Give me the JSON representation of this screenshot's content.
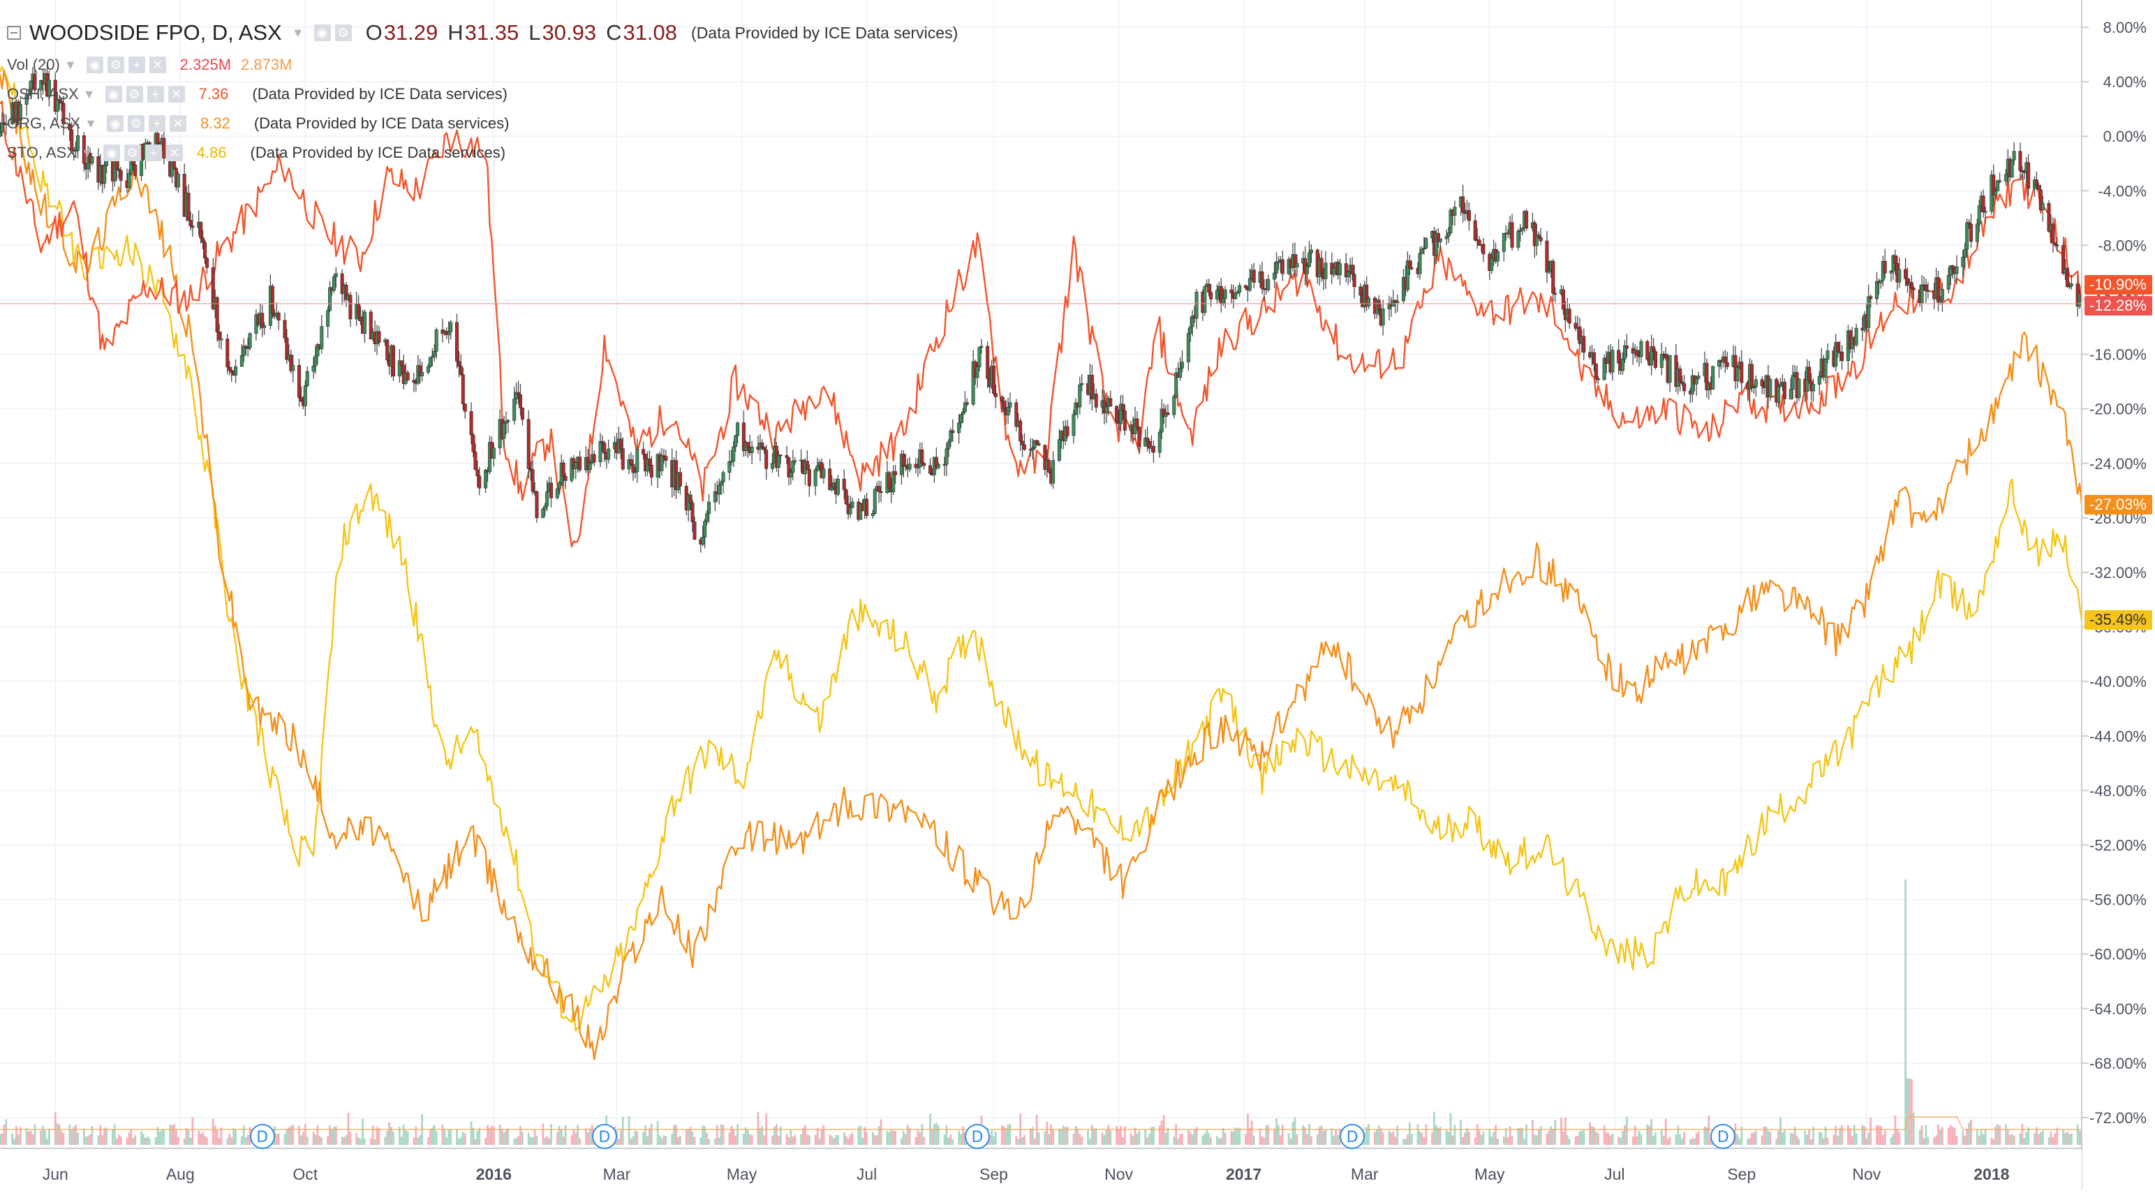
{
  "legend": {
    "main": {
      "symbol": "WOODSIDE FPO, D, ASX",
      "open_label": "O",
      "open": "31.29",
      "high_label": "H",
      "high": "31.35",
      "low_label": "L",
      "low": "30.93",
      "close_label": "C",
      "close": "31.08",
      "provider": "(Data Provided by ICE Data services)"
    },
    "vol": {
      "label": "Vol (20)",
      "value1": "2.325M",
      "value2": "2.873M",
      "color1": "#e8494f",
      "color2": "#f49b4c"
    },
    "comparisons": [
      {
        "label": "OSH, ASX",
        "value": "7.36",
        "color": "#f2552c",
        "provider": "(Data Provided by ICE Data services)"
      },
      {
        "label": "ORG, ASX",
        "value": "8.32",
        "color": "#f48f1b",
        "provider": "(Data Provided by ICE Data services)"
      },
      {
        "label": "STO, ASX",
        "value": "4.86",
        "color": "#f5c518",
        "provider": "(Data Provided by ICE Data services)"
      }
    ]
  },
  "colors": {
    "up_candle": "#3e8d5c",
    "down_candle": "#b32a2a",
    "wick": "#4a4a4a",
    "osh": "#f2552c",
    "org": "#f48f1b",
    "sto": "#f5c518",
    "vol_up": "#a8d8c4",
    "vol_down": "#f6b0b8",
    "vol_ma": "#f7a55a",
    "grid": "#f0f3fa",
    "axis_text": "#4c525e",
    "crosshair": "#f28c8c",
    "badge": "#2f8de4"
  },
  "events": [
    "D",
    "D",
    "D",
    "D",
    "D"
  ],
  "chart_data": {
    "type": "line",
    "y_unit": "%",
    "ylim": [
      -74,
      10
    ],
    "y_ticks": [
      "8.00%",
      "4.00%",
      "0.00%",
      "-4.00%",
      "-8.00%",
      "-12.00%",
      "-16.00%",
      "-20.00%",
      "-24.00%",
      "-28.00%",
      "-32.00%",
      "-36.00%",
      "-40.00%",
      "-44.00%",
      "-48.00%",
      "-52.00%",
      "-56.00%",
      "-60.00%",
      "-64.00%",
      "-68.00%",
      "-72.00%"
    ],
    "y_tick_values": [
      8,
      4,
      0,
      -4,
      -8,
      -12,
      -16,
      -20,
      -24,
      -28,
      -32,
      -36,
      -40,
      -44,
      -48,
      -52,
      -56,
      -60,
      -64,
      -68,
      -72
    ],
    "x_ticks": [
      "Jun",
      "Aug",
      "Oct",
      "2016",
      "Mar",
      "May",
      "Jul",
      "Sep",
      "Nov",
      "2017",
      "Mar",
      "May",
      "Jul",
      "Sep",
      "Nov",
      "2018"
    ],
    "x_tick_dates": [
      "2015-06-01",
      "2015-08-01",
      "2015-10-01",
      "2016-01-01",
      "2016-03-01",
      "2016-05-01",
      "2016-07-01",
      "2016-09-01",
      "2016-11-01",
      "2017-01-01",
      "2017-03-01",
      "2017-05-01",
      "2017-07-01",
      "2017-09-01",
      "2017-11-01",
      "2018-01-01"
    ],
    "xlim": [
      "2015-05-05",
      "2018-02-14"
    ],
    "event_dates": [
      "2015-09-10",
      "2016-02-24",
      "2016-08-24",
      "2017-02-23",
      "2017-08-23"
    ],
    "main_series": {
      "name": "WOODSIDE FPO, D, ASX",
      "style": "candles",
      "keypoints": [
        [
          "2015-05-05",
          0
        ],
        [
          "2015-05-25",
          5
        ],
        [
          "2015-06-15",
          -2
        ],
        [
          "2015-07-06",
          -3
        ],
        [
          "2015-07-20",
          0
        ],
        [
          "2015-08-12",
          -8
        ],
        [
          "2015-08-25",
          -18
        ],
        [
          "2015-09-14",
          -12
        ],
        [
          "2015-09-30",
          -19
        ],
        [
          "2015-10-15",
          -11
        ],
        [
          "2015-11-01",
          -14
        ],
        [
          "2015-11-20",
          -18
        ],
        [
          "2015-12-10",
          -14
        ],
        [
          "2015-12-25",
          -25
        ],
        [
          "2016-01-12",
          -19
        ],
        [
          "2016-01-22",
          -27
        ],
        [
          "2016-02-08",
          -24
        ],
        [
          "2016-02-26",
          -23
        ],
        [
          "2016-03-15",
          -24
        ],
        [
          "2016-04-01",
          -25
        ],
        [
          "2016-04-10",
          -30
        ],
        [
          "2016-04-28",
          -22
        ],
        [
          "2016-05-20",
          -24
        ],
        [
          "2016-06-10",
          -25
        ],
        [
          "2016-06-27",
          -28
        ],
        [
          "2016-07-20",
          -24
        ],
        [
          "2016-08-08",
          -24
        ],
        [
          "2016-08-25",
          -16
        ],
        [
          "2016-09-12",
          -21
        ],
        [
          "2016-09-28",
          -25
        ],
        [
          "2016-10-15",
          -18
        ],
        [
          "2016-11-04",
          -21
        ],
        [
          "2016-11-18",
          -23
        ],
        [
          "2016-12-10",
          -12
        ],
        [
          "2016-12-31",
          -11
        ],
        [
          "2017-01-31",
          -9
        ],
        [
          "2017-02-20",
          -10
        ],
        [
          "2017-03-08",
          -13
        ],
        [
          "2017-03-28",
          -9
        ],
        [
          "2017-04-18",
          -5
        ],
        [
          "2017-05-01",
          -9
        ],
        [
          "2017-05-19",
          -6
        ],
        [
          "2017-06-08",
          -13
        ],
        [
          "2017-06-22",
          -17
        ],
        [
          "2017-07-15",
          -16
        ],
        [
          "2017-08-08",
          -18
        ],
        [
          "2017-08-28",
          -17
        ],
        [
          "2017-09-18",
          -19
        ],
        [
          "2017-10-12",
          -17
        ],
        [
          "2017-10-30",
          -14
        ],
        [
          "2017-11-12",
          -9
        ],
        [
          "2017-11-25",
          -12
        ],
        [
          "2017-12-08",
          -11
        ],
        [
          "2017-12-31",
          -4
        ],
        [
          "2018-01-10",
          -2
        ],
        [
          "2018-01-22",
          -3
        ],
        [
          "2018-02-01",
          -8
        ],
        [
          "2018-02-14",
          -12.28
        ]
      ],
      "last_label": "-12.28%",
      "last_color": "#ef5350"
    },
    "series": [
      {
        "name": "OSH, ASX",
        "color": "#f2552c",
        "keypoints": [
          [
            "2015-05-05",
            2
          ],
          [
            "2015-05-25",
            -8
          ],
          [
            "2015-06-10",
            -5
          ],
          [
            "2015-06-25",
            -16
          ],
          [
            "2015-07-15",
            -11
          ],
          [
            "2015-08-05",
            -12
          ],
          [
            "2015-08-28",
            -7
          ],
          [
            "2015-09-20",
            -2
          ],
          [
            "2015-10-10",
            -7
          ],
          [
            "2015-10-28",
            -9
          ],
          [
            "2015-11-10",
            -3
          ],
          [
            "2015-11-25",
            -4
          ],
          [
            "2015-12-10",
            0
          ],
          [
            "2015-12-28",
            -1
          ],
          [
            "2016-01-06",
            -22
          ],
          [
            "2016-01-14",
            -26
          ],
          [
            "2016-01-28",
            -22
          ],
          [
            "2016-02-10",
            -31
          ],
          [
            "2016-02-24",
            -15
          ],
          [
            "2016-03-10",
            -23
          ],
          [
            "2016-03-28",
            -20
          ],
          [
            "2016-04-12",
            -26
          ],
          [
            "2016-04-28",
            -18
          ],
          [
            "2016-05-18",
            -22
          ],
          [
            "2016-06-10",
            -18
          ],
          [
            "2016-06-28",
            -25
          ],
          [
            "2016-07-18",
            -22
          ],
          [
            "2016-08-06",
            -14
          ],
          [
            "2016-08-24",
            -8
          ],
          [
            "2016-09-10",
            -24
          ],
          [
            "2016-09-26",
            -24
          ],
          [
            "2016-10-10",
            -8
          ],
          [
            "2016-10-26",
            -20
          ],
          [
            "2016-11-10",
            -23
          ],
          [
            "2016-11-20",
            -14
          ],
          [
            "2016-12-06",
            -22
          ],
          [
            "2016-12-22",
            -15
          ],
          [
            "2017-01-10",
            -13
          ],
          [
            "2017-01-30",
            -10
          ],
          [
            "2017-02-18",
            -16
          ],
          [
            "2017-03-04",
            -17
          ],
          [
            "2017-03-20",
            -16
          ],
          [
            "2017-04-07",
            -9
          ],
          [
            "2017-04-22",
            -12
          ],
          [
            "2017-05-06",
            -13
          ],
          [
            "2017-05-20",
            -12
          ],
          [
            "2017-06-03",
            -13
          ],
          [
            "2017-06-17",
            -18
          ],
          [
            "2017-07-08",
            -21
          ],
          [
            "2017-07-27",
            -20
          ],
          [
            "2017-08-16",
            -22
          ],
          [
            "2017-09-01",
            -19
          ],
          [
            "2017-09-16",
            -20
          ],
          [
            "2017-10-12",
            -19
          ],
          [
            "2017-10-30",
            -16
          ],
          [
            "2017-11-15",
            -12
          ],
          [
            "2017-11-30",
            -12
          ],
          [
            "2017-12-14",
            -11
          ],
          [
            "2017-12-31",
            -6
          ],
          [
            "2018-01-14",
            -3
          ],
          [
            "2018-01-28",
            -6
          ],
          [
            "2018-02-14",
            -10.9
          ]
        ],
        "last_label": "-10.90%",
        "last_color": "#f2552c"
      },
      {
        "name": "ORG, ASX",
        "color": "#f48f1b",
        "keypoints": [
          [
            "2015-05-05",
            5
          ],
          [
            "2015-05-25",
            -5
          ],
          [
            "2015-06-15",
            -10
          ],
          [
            "2015-07-10",
            -2
          ],
          [
            "2015-07-25",
            -8
          ],
          [
            "2015-08-08",
            -16
          ],
          [
            "2015-08-20",
            -30
          ],
          [
            "2015-09-05",
            -42
          ],
          [
            "2015-09-25",
            -44
          ],
          [
            "2015-10-15",
            -51
          ],
          [
            "2015-11-05",
            -51
          ],
          [
            "2015-11-28",
            -57
          ],
          [
            "2015-12-20",
            -51
          ],
          [
            "2016-01-08",
            -57
          ],
          [
            "2016-01-20",
            -60
          ],
          [
            "2016-02-04",
            -63
          ],
          [
            "2016-02-20",
            -67
          ],
          [
            "2016-03-08",
            -60
          ],
          [
            "2016-03-22",
            -56
          ],
          [
            "2016-04-08",
            -60
          ],
          [
            "2016-04-22",
            -54
          ],
          [
            "2016-05-08",
            -51
          ],
          [
            "2016-05-28",
            -52
          ],
          [
            "2016-06-20",
            -49
          ],
          [
            "2016-07-18",
            -49
          ],
          [
            "2016-08-08",
            -52
          ],
          [
            "2016-08-30",
            -56
          ],
          [
            "2016-09-14",
            -57
          ],
          [
            "2016-10-03",
            -49
          ],
          [
            "2016-10-20",
            -52
          ],
          [
            "2016-11-05",
            -55
          ],
          [
            "2016-11-25",
            -48
          ],
          [
            "2016-12-10",
            -45
          ],
          [
            "2016-12-24",
            -43
          ],
          [
            "2017-01-08",
            -46
          ],
          [
            "2017-01-28",
            -41
          ],
          [
            "2017-02-14",
            -37
          ],
          [
            "2017-03-03",
            -42
          ],
          [
            "2017-03-14",
            -44
          ],
          [
            "2017-03-30",
            -41
          ],
          [
            "2017-04-18",
            -36
          ],
          [
            "2017-05-04",
            -33
          ],
          [
            "2017-05-24",
            -31
          ],
          [
            "2017-06-12",
            -34
          ],
          [
            "2017-06-28",
            -39
          ],
          [
            "2017-07-10",
            -41
          ],
          [
            "2017-07-24",
            -39
          ],
          [
            "2017-08-09",
            -38
          ],
          [
            "2017-08-24",
            -36
          ],
          [
            "2017-09-12",
            -33
          ],
          [
            "2017-09-28",
            -34
          ],
          [
            "2017-10-18",
            -37
          ],
          [
            "2017-10-31",
            -34
          ],
          [
            "2017-11-18",
            -26
          ],
          [
            "2017-11-28",
            -29
          ],
          [
            "2017-12-14",
            -25
          ],
          [
            "2017-12-31",
            -21
          ],
          [
            "2018-01-18",
            -15
          ],
          [
            "2018-01-28",
            -18
          ],
          [
            "2018-02-04",
            -20
          ],
          [
            "2018-02-14",
            -27.03
          ]
        ],
        "last_label": "-27.03%",
        "last_color": "#f48f1b"
      },
      {
        "name": "STO, ASX",
        "color": "#f5c518",
        "keypoints": [
          [
            "2015-05-05",
            6
          ],
          [
            "2015-05-25",
            -3
          ],
          [
            "2015-06-15",
            -10
          ],
          [
            "2015-07-05",
            -8
          ],
          [
            "2015-07-20",
            -11
          ],
          [
            "2015-08-05",
            -17
          ],
          [
            "2015-08-18",
            -28
          ],
          [
            "2015-08-28",
            -38
          ],
          [
            "2015-09-15",
            -47
          ],
          [
            "2015-09-25",
            -52
          ],
          [
            "2015-10-05",
            -53
          ],
          [
            "2015-10-18",
            -30
          ],
          [
            "2015-11-02",
            -26
          ],
          [
            "2015-11-18",
            -31
          ],
          [
            "2015-12-08",
            -46
          ],
          [
            "2015-12-22",
            -44
          ],
          [
            "2016-01-08",
            -51
          ],
          [
            "2016-01-22",
            -60
          ],
          [
            "2016-02-08",
            -65
          ],
          [
            "2016-02-22",
            -63
          ],
          [
            "2016-03-10",
            -58
          ],
          [
            "2016-03-28",
            -49
          ],
          [
            "2016-04-15",
            -45
          ],
          [
            "2016-05-02",
            -47
          ],
          [
            "2016-05-18",
            -38
          ],
          [
            "2016-06-08",
            -43
          ],
          [
            "2016-06-25",
            -35
          ],
          [
            "2016-07-18",
            -37
          ],
          [
            "2016-08-04",
            -41
          ],
          [
            "2016-08-22",
            -36
          ],
          [
            "2016-09-08",
            -43
          ],
          [
            "2016-09-25",
            -47
          ],
          [
            "2016-10-12",
            -48
          ],
          [
            "2016-10-30",
            -51
          ],
          [
            "2016-11-18",
            -50
          ],
          [
            "2016-12-06",
            -45
          ],
          [
            "2016-12-22",
            -41
          ],
          [
            "2017-01-10",
            -47
          ],
          [
            "2017-01-28",
            -44
          ],
          [
            "2017-02-14",
            -46
          ],
          [
            "2017-03-01",
            -47
          ],
          [
            "2017-03-20",
            -48
          ],
          [
            "2017-04-05",
            -51
          ],
          [
            "2017-04-20",
            -50
          ],
          [
            "2017-05-10",
            -53
          ],
          [
            "2017-05-28",
            -52
          ],
          [
            "2017-06-14",
            -56
          ],
          [
            "2017-07-01",
            -60
          ],
          [
            "2017-07-18",
            -60
          ],
          [
            "2017-08-05",
            -55
          ],
          [
            "2017-08-24",
            -55
          ],
          [
            "2017-09-14",
            -50
          ],
          [
            "2017-10-01",
            -48
          ],
          [
            "2017-10-20",
            -45
          ],
          [
            "2017-11-08",
            -40
          ],
          [
            "2017-11-22",
            -38
          ],
          [
            "2017-12-06",
            -33
          ],
          [
            "2017-12-24",
            -35
          ],
          [
            "2018-01-10",
            -26
          ],
          [
            "2018-01-24",
            -31
          ],
          [
            "2018-02-04",
            -29
          ],
          [
            "2018-02-14",
            -35.49
          ]
        ],
        "last_label": "-35.49%",
        "last_color": "#f5c518"
      }
    ],
    "volume": {
      "spike_date": "2017-11-20",
      "spike_level": 0.95
    }
  }
}
